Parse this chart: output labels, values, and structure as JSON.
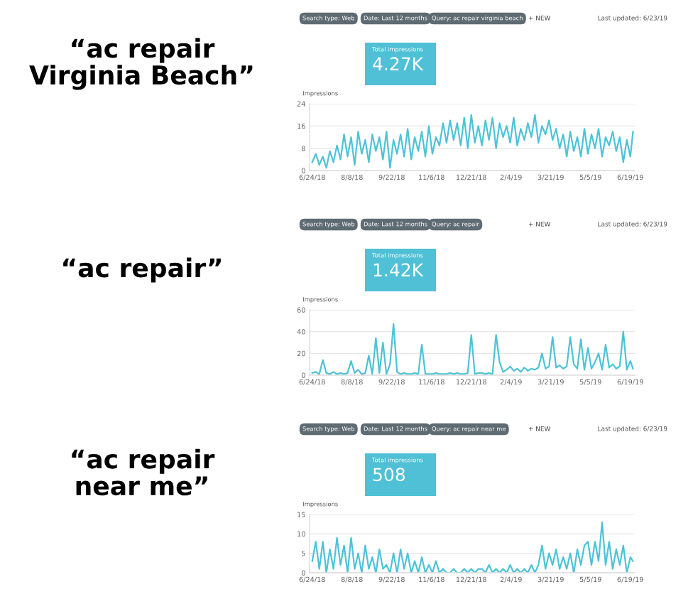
{
  "chart_data": [
    {
      "type": "line",
      "title": "“ac repair\nVirginia Beach”",
      "ylabel": "Impressions",
      "annotations": [
        "Search type: Web",
        "Date: Last 12 months",
        "Query: ac repair virginia beach",
        "+ NEW",
        "Last updated: 6/23/19",
        "Total impressions",
        "4.27K"
      ],
      "x": [
        "2018-06-24",
        "2018-06-28",
        "2018-07-02",
        "2018-07-06",
        "2018-07-10",
        "2018-07-14",
        "2018-07-18",
        "2018-07-22",
        "2018-07-26",
        "2018-07-30",
        "2018-08-03",
        "2018-08-07",
        "2018-08-11",
        "2018-08-15",
        "2018-08-19",
        "2018-08-23",
        "2018-08-27",
        "2018-08-31",
        "2018-09-04",
        "2018-09-08",
        "2018-09-12",
        "2018-09-16",
        "2018-09-20",
        "2018-09-24",
        "2018-09-28",
        "2018-10-02",
        "2018-10-06",
        "2018-10-10",
        "2018-10-14",
        "2018-10-18",
        "2018-10-22",
        "2018-10-26",
        "2018-10-30",
        "2018-11-03",
        "2018-11-07",
        "2018-11-11",
        "2018-11-15",
        "2018-11-19",
        "2018-11-23",
        "2018-11-27",
        "2018-12-01",
        "2018-12-05",
        "2018-12-09",
        "2018-12-13",
        "2018-12-17",
        "2018-12-21",
        "2018-12-25",
        "2018-12-29",
        "2019-01-02",
        "2019-01-06",
        "2019-01-10",
        "2019-01-14",
        "2019-01-18",
        "2019-01-22",
        "2019-01-26",
        "2019-01-30",
        "2019-02-03",
        "2019-02-07",
        "2019-02-11",
        "2019-02-15",
        "2019-02-19",
        "2019-02-23",
        "2019-02-27",
        "2019-03-03",
        "2019-03-07",
        "2019-03-11",
        "2019-03-15",
        "2019-03-19",
        "2019-03-23",
        "2019-03-27",
        "2019-03-31",
        "2019-04-04",
        "2019-04-08",
        "2019-04-12",
        "2019-04-16",
        "2019-04-20",
        "2019-04-24",
        "2019-04-28",
        "2019-05-02",
        "2019-05-06",
        "2019-05-10",
        "2019-05-14",
        "2019-05-18",
        "2019-05-22",
        "2019-05-26",
        "2019-05-30",
        "2019-06-03",
        "2019-06-07",
        "2019-06-11",
        "2019-06-15",
        "2019-06-19",
        "2019-06-22"
      ],
      "series": [
        {
          "color": "#4ec3d6",
          "values": [
            3,
            6,
            2,
            5,
            1,
            7,
            3,
            9,
            4,
            13,
            5,
            12,
            2,
            14,
            6,
            11,
            3,
            13,
            7,
            12,
            4,
            14,
            1,
            11,
            6,
            13,
            5,
            15,
            4,
            12,
            7,
            14,
            5,
            16,
            6,
            12,
            9,
            17,
            10,
            18,
            11,
            17,
            9,
            19,
            8,
            20,
            10,
            16,
            9,
            18,
            11,
            19,
            8,
            17,
            12,
            16,
            10,
            19,
            9,
            15,
            11,
            17,
            12,
            20,
            10,
            16,
            13,
            18,
            11,
            15,
            8,
            13,
            5,
            14,
            7,
            12,
            5,
            15,
            6,
            13,
            8,
            15,
            5,
            12,
            9,
            14,
            7,
            12,
            3,
            11,
            5,
            14
          ]
        }
      ],
      "xlim": [
        "2018-06-21",
        "2019-06-24"
      ],
      "xticks": [
        {
          "value": "2018-06-24",
          "label": "6/24/18"
        },
        {
          "value": "2018-08-08",
          "label": "8/8/18"
        },
        {
          "value": "2018-09-22",
          "label": "9/22/18"
        },
        {
          "value": "2018-11-06",
          "label": "11/6/18"
        },
        {
          "value": "2018-12-21",
          "label": "12/21/18"
        },
        {
          "value": "2019-02-04",
          "label": "2/4/19"
        },
        {
          "value": "2019-03-21",
          "label": "3/21/19"
        },
        {
          "value": "2019-05-05",
          "label": "5/5/19"
        },
        {
          "value": "2019-06-19",
          "label": "6/19/19"
        }
      ],
      "ylim": [
        0,
        24
      ],
      "yticks": [
        0,
        8,
        16,
        24
      ],
      "grid": "y",
      "legend": false,
      "marker": "none",
      "line_style": "solid"
    },
    {
      "type": "line",
      "title": "“ac repair”",
      "ylabel": "Impressions",
      "annotations": [
        "Search type: Web",
        "Date: Last 12 months",
        "Query: ac repair",
        "+ NEW",
        "Last updated: 6/23/19",
        "Total impressions",
        "1.42K"
      ],
      "x": [
        "2018-06-24",
        "2018-06-28",
        "2018-07-02",
        "2018-07-06",
        "2018-07-10",
        "2018-07-14",
        "2018-07-18",
        "2018-07-22",
        "2018-07-26",
        "2018-07-30",
        "2018-08-03",
        "2018-08-07",
        "2018-08-11",
        "2018-08-15",
        "2018-08-19",
        "2018-08-23",
        "2018-08-27",
        "2018-08-31",
        "2018-09-04",
        "2018-09-08",
        "2018-09-12",
        "2018-09-16",
        "2018-09-20",
        "2018-09-24",
        "2018-09-28",
        "2018-10-02",
        "2018-10-06",
        "2018-10-10",
        "2018-10-14",
        "2018-10-18",
        "2018-10-22",
        "2018-10-26",
        "2018-10-30",
        "2018-11-03",
        "2018-11-07",
        "2018-11-11",
        "2018-11-15",
        "2018-11-19",
        "2018-11-23",
        "2018-11-27",
        "2018-12-01",
        "2018-12-05",
        "2018-12-09",
        "2018-12-13",
        "2018-12-17",
        "2018-12-21",
        "2018-12-25",
        "2018-12-29",
        "2019-01-02",
        "2019-01-06",
        "2019-01-10",
        "2019-01-14",
        "2019-01-18",
        "2019-01-22",
        "2019-01-26",
        "2019-01-30",
        "2019-02-03",
        "2019-02-07",
        "2019-02-11",
        "2019-02-15",
        "2019-02-19",
        "2019-02-23",
        "2019-02-27",
        "2019-03-03",
        "2019-03-07",
        "2019-03-11",
        "2019-03-15",
        "2019-03-19",
        "2019-03-23",
        "2019-03-27",
        "2019-03-31",
        "2019-04-04",
        "2019-04-08",
        "2019-04-12",
        "2019-04-16",
        "2019-04-20",
        "2019-04-24",
        "2019-04-28",
        "2019-05-02",
        "2019-05-06",
        "2019-05-10",
        "2019-05-14",
        "2019-05-18",
        "2019-05-22",
        "2019-05-26",
        "2019-05-30",
        "2019-06-03",
        "2019-06-07",
        "2019-06-11",
        "2019-06-15",
        "2019-06-19",
        "2019-06-22"
      ],
      "series": [
        {
          "color": "#4ec3d6",
          "values": [
            2,
            3,
            1,
            14,
            2,
            1,
            3,
            1,
            2,
            1,
            2,
            13,
            2,
            5,
            1,
            2,
            18,
            1,
            34,
            2,
            30,
            1,
            10,
            47,
            3,
            1,
            2,
            1,
            1,
            2,
            1,
            28,
            1,
            1,
            1,
            2,
            1,
            1,
            1,
            2,
            1,
            2,
            1,
            1,
            2,
            37,
            1,
            2,
            2,
            1,
            2,
            1,
            37,
            12,
            3,
            5,
            8,
            4,
            6,
            3,
            7,
            4,
            6,
            5,
            7,
            20,
            6,
            8,
            35,
            7,
            9,
            6,
            8,
            35,
            10,
            6,
            33,
            5,
            25,
            6,
            12,
            20,
            5,
            28,
            7,
            10,
            6,
            8,
            40,
            5,
            13,
            6
          ]
        }
      ],
      "xlim": [
        "2018-06-21",
        "2019-06-24"
      ],
      "xticks": [
        {
          "value": "2018-06-24",
          "label": "6/24/18"
        },
        {
          "value": "2018-08-08",
          "label": "8/8/18"
        },
        {
          "value": "2018-09-22",
          "label": "9/22/18"
        },
        {
          "value": "2018-11-06",
          "label": "11/6/18"
        },
        {
          "value": "2018-12-21",
          "label": "12/21/18"
        },
        {
          "value": "2019-02-04",
          "label": "2/4/19"
        },
        {
          "value": "2019-03-21",
          "label": "3/21/19"
        },
        {
          "value": "2019-05-05",
          "label": "5/5/19"
        },
        {
          "value": "2019-06-19",
          "label": "6/19/19"
        }
      ],
      "ylim": [
        0,
        60
      ],
      "yticks": [
        0,
        20,
        40,
        60
      ],
      "grid": "y",
      "legend": false,
      "marker": "none",
      "line_style": "solid"
    },
    {
      "type": "line",
      "title": "“ac repair\nnear me”",
      "ylabel": "Impressions",
      "annotations": [
        "Search type: Web",
        "Date: Last 12 months",
        "Query: ac repair near me",
        "+ NEW",
        "Last updated: 6/23/19",
        "Total impressions",
        "508"
      ],
      "x": [
        "2018-06-24",
        "2018-06-28",
        "2018-07-02",
        "2018-07-06",
        "2018-07-10",
        "2018-07-14",
        "2018-07-18",
        "2018-07-22",
        "2018-07-26",
        "2018-07-30",
        "2018-08-03",
        "2018-08-07",
        "2018-08-11",
        "2018-08-15",
        "2018-08-19",
        "2018-08-23",
        "2018-08-27",
        "2018-08-31",
        "2018-09-04",
        "2018-09-08",
        "2018-09-12",
        "2018-09-16",
        "2018-09-20",
        "2018-09-24",
        "2018-09-28",
        "2018-10-02",
        "2018-10-06",
        "2018-10-10",
        "2018-10-14",
        "2018-10-18",
        "2018-10-22",
        "2018-10-26",
        "2018-10-30",
        "2018-11-03",
        "2018-11-07",
        "2018-11-11",
        "2018-11-15",
        "2018-11-19",
        "2018-11-23",
        "2018-11-27",
        "2018-12-01",
        "2018-12-05",
        "2018-12-09",
        "2018-12-13",
        "2018-12-17",
        "2018-12-21",
        "2018-12-25",
        "2018-12-29",
        "2019-01-02",
        "2019-01-06",
        "2019-01-10",
        "2019-01-14",
        "2019-01-18",
        "2019-01-22",
        "2019-01-26",
        "2019-01-30",
        "2019-02-03",
        "2019-02-07",
        "2019-02-11",
        "2019-02-15",
        "2019-02-19",
        "2019-02-23",
        "2019-02-27",
        "2019-03-03",
        "2019-03-07",
        "2019-03-11",
        "2019-03-15",
        "2019-03-19",
        "2019-03-23",
        "2019-03-27",
        "2019-03-31",
        "2019-04-04",
        "2019-04-08",
        "2019-04-12",
        "2019-04-16",
        "2019-04-20",
        "2019-04-24",
        "2019-04-28",
        "2019-05-02",
        "2019-05-06",
        "2019-05-10",
        "2019-05-14",
        "2019-05-18",
        "2019-05-22",
        "2019-05-26",
        "2019-05-30",
        "2019-06-03",
        "2019-06-07",
        "2019-06-11",
        "2019-06-15",
        "2019-06-19",
        "2019-06-22"
      ],
      "series": [
        {
          "color": "#4ec3d6",
          "values": [
            3,
            8,
            1,
            8,
            0,
            6,
            1,
            9,
            2,
            7,
            0,
            9,
            1,
            5,
            0,
            7,
            1,
            4,
            0,
            6,
            1,
            2,
            0,
            5,
            0,
            6,
            1,
            5,
            0,
            3,
            0,
            4,
            0,
            2,
            0,
            3,
            0,
            1,
            0,
            0,
            1,
            0,
            0,
            1,
            0,
            1,
            0,
            1,
            1,
            0,
            2,
            0,
            1,
            0,
            1,
            0,
            2,
            0,
            1,
            0,
            1,
            0,
            2,
            0,
            2,
            7,
            1,
            5,
            2,
            6,
            1,
            4,
            1,
            5,
            0,
            6,
            2,
            7,
            8,
            2,
            8,
            3,
            13,
            2,
            8,
            1,
            6,
            2,
            7,
            0,
            4,
            3
          ]
        }
      ],
      "xlim": [
        "2018-06-21",
        "2019-06-24"
      ],
      "xticks": [
        {
          "value": "2018-06-24",
          "label": "6/24/18"
        },
        {
          "value": "2018-08-08",
          "label": "8/8/18"
        },
        {
          "value": "2018-09-22",
          "label": "9/22/18"
        },
        {
          "value": "2018-11-06",
          "label": "11/6/18"
        },
        {
          "value": "2018-12-21",
          "label": "12/21/18"
        },
        {
          "value": "2019-02-04",
          "label": "2/4/19"
        },
        {
          "value": "2019-03-21",
          "label": "3/21/19"
        },
        {
          "value": "2019-05-05",
          "label": "5/5/19"
        },
        {
          "value": "2019-06-19",
          "label": "6/19/19"
        }
      ],
      "ylim": [
        0,
        15
      ],
      "yticks": [
        0,
        5,
        10,
        15
      ],
      "grid": "y",
      "legend": false,
      "marker": "none",
      "line_style": "solid"
    }
  ]
}
